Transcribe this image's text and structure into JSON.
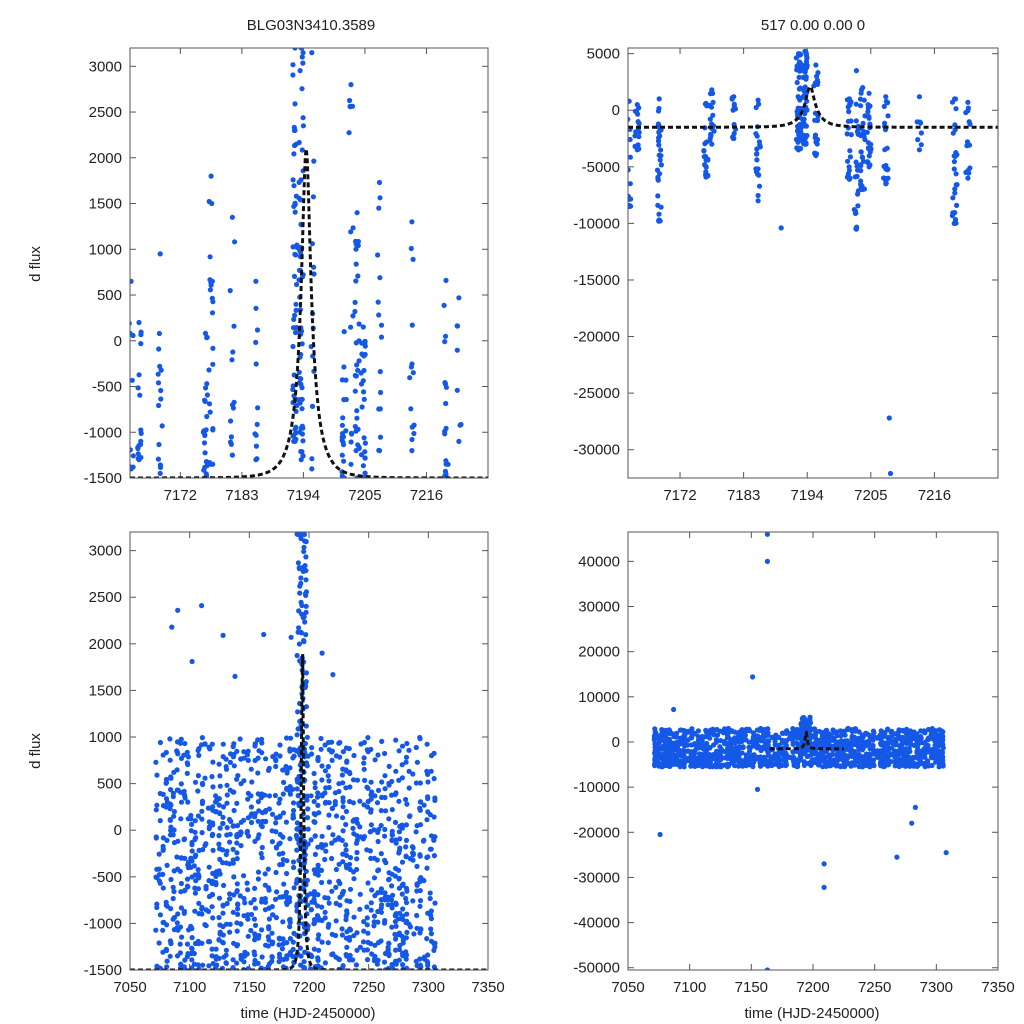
{
  "figure": {
    "left_title": "BLG03N3410.3589",
    "right_title": "517  0.00   0.00   0",
    "ylabel": "d flux",
    "xlabel": "time (HJD-2450000)",
    "point_color": "#1558e8",
    "model_color": "#111111"
  },
  "chart_data": [
    {
      "id": "top-left",
      "type": "scatter",
      "title": "BLG03N3410.3589",
      "ylabel": "d flux",
      "xlim": [
        7163,
        7227
      ],
      "ylim": [
        -1500,
        3200
      ],
      "xticks": [
        7172,
        7183,
        7194,
        7205,
        7216
      ],
      "yticks": [
        -1500,
        -1000,
        -500,
        0,
        500,
        1000,
        1500,
        2000,
        2500,
        3000
      ],
      "model": {
        "t0": 7194.5,
        "tE": 3.5,
        "base": -1500,
        "peak": 2100
      },
      "clusters": [
        {
          "x": 7163.2,
          "n": 8,
          "ymin": -1400,
          "ymax": 650
        },
        {
          "x": 7164.6,
          "n": 16,
          "ymin": -1300,
          "ymax": 200
        },
        {
          "x": 7168.4,
          "n": 14,
          "ymin": -1450,
          "ymax": 950
        },
        {
          "x": 7176.5,
          "n": 22,
          "ymin": -1500,
          "ymax": 80
        },
        {
          "x": 7177.5,
          "n": 20,
          "ymin": -1350,
          "ymax": 1800
        },
        {
          "x": 7181.3,
          "n": 12,
          "ymin": -1250,
          "ymax": 1350
        },
        {
          "x": 7185.5,
          "n": 10,
          "ymin": -1300,
          "ymax": 650
        },
        {
          "x": 7192.5,
          "n": 50,
          "ymin": -1100,
          "ymax": 3200
        },
        {
          "x": 7193.6,
          "n": 55,
          "ymin": -1300,
          "ymax": 3200
        },
        {
          "x": 7195.5,
          "n": 12,
          "ymin": -1400,
          "ymax": 3150
        },
        {
          "x": 7201.3,
          "n": 18,
          "ymin": -1500,
          "ymax": 100
        },
        {
          "x": 7202.5,
          "n": 12,
          "ymin": -1350,
          "ymax": 2800
        },
        {
          "x": 7203.6,
          "n": 28,
          "ymin": -1500,
          "ymax": 1400
        },
        {
          "x": 7204.7,
          "n": 22,
          "ymin": -1500,
          "ymax": 150
        },
        {
          "x": 7207.6,
          "n": 14,
          "ymin": -1200,
          "ymax": 1730
        },
        {
          "x": 7213.4,
          "n": 12,
          "ymin": -1200,
          "ymax": 1300
        },
        {
          "x": 7219.5,
          "n": 16,
          "ymin": -1480,
          "ymax": 660
        },
        {
          "x": 7221.8,
          "n": 6,
          "ymin": -1100,
          "ymax": 470
        }
      ]
    },
    {
      "id": "top-right",
      "type": "scatter",
      "title": "517  0.00   0.00   0",
      "xlim": [
        7163,
        7227
      ],
      "ylim": [
        -32500,
        5500
      ],
      "xticks": [
        7172,
        7183,
        7194,
        7205,
        7216
      ],
      "yticks": [
        -30000,
        -25000,
        -20000,
        -15000,
        -10000,
        -5000,
        0,
        5000
      ],
      "model": {
        "t0": 7194.5,
        "tE": 3.5,
        "base": -1500,
        "peak": 2100
      },
      "clusters": [
        {
          "x": 7163.2,
          "n": 12,
          "ymin": -8500,
          "ymax": 800
        },
        {
          "x": 7164.6,
          "n": 16,
          "ymin": -3500,
          "ymax": 500
        },
        {
          "x": 7168.4,
          "n": 30,
          "ymin": -9800,
          "ymax": 1000
        },
        {
          "x": 7176.5,
          "n": 20,
          "ymin": -5900,
          "ymax": 600
        },
        {
          "x": 7177.5,
          "n": 16,
          "ymin": -3000,
          "ymax": 1800
        },
        {
          "x": 7181.3,
          "n": 14,
          "ymin": -2500,
          "ymax": 1200
        },
        {
          "x": 7185.5,
          "n": 20,
          "ymin": -8000,
          "ymax": 900
        },
        {
          "x": 7192.5,
          "n": 55,
          "ymin": -3500,
          "ymax": 5000
        },
        {
          "x": 7193.6,
          "n": 55,
          "ymin": -3000,
          "ymax": 5200
        },
        {
          "x": 7195.5,
          "n": 20,
          "ymin": -4000,
          "ymax": 4000
        },
        {
          "x": 7201.3,
          "n": 20,
          "ymin": -6100,
          "ymax": 1000
        },
        {
          "x": 7202.5,
          "n": 20,
          "ymin": -10500,
          "ymax": 3500
        },
        {
          "x": 7203.6,
          "n": 30,
          "ymin": -7000,
          "ymax": 2000
        },
        {
          "x": 7204.7,
          "n": 22,
          "ymin": -5000,
          "ymax": 1500
        },
        {
          "x": 7207.6,
          "n": 20,
          "ymin": -6500,
          "ymax": 1200
        },
        {
          "x": 7213.4,
          "n": 6,
          "ymin": -3500,
          "ymax": 1200
        },
        {
          "x": 7219.5,
          "n": 26,
          "ymin": -10000,
          "ymax": 1000
        },
        {
          "x": 7221.8,
          "n": 12,
          "ymin": -6000,
          "ymax": 700
        }
      ],
      "extra_points": [
        [
          7189.5,
          -10400
        ],
        [
          7208.2,
          -27200
        ],
        [
          7208.4,
          -32100
        ]
      ]
    },
    {
      "id": "bottom-left",
      "type": "scatter",
      "ylabel": "d flux",
      "xlabel": "time (HJD-2450000)",
      "xlim": [
        7050,
        7350
      ],
      "ylim": [
        -1500,
        3200
      ],
      "xticks": [
        7050,
        7100,
        7150,
        7200,
        7250,
        7300,
        7350
      ],
      "yticks": [
        -1500,
        -1000,
        -500,
        0,
        500,
        1000,
        1500,
        2000,
        2500,
        3000
      ],
      "model": {
        "t0": 7194.5,
        "tE": 3.5,
        "base": -1500,
        "peak": 2100
      },
      "spread": {
        "xmin": 7072,
        "xmax": 7308,
        "n": 1300,
        "ymin": -1500,
        "ymax": 1000
      },
      "peak_cluster": {
        "x": 7194,
        "halfwidth": 4,
        "n": 120,
        "ymin": -1100,
        "ymax": 3200
      },
      "extra_points": [
        [
          7085,
          2180
        ],
        [
          7090,
          2360
        ],
        [
          7110,
          2410
        ],
        [
          7102,
          1810
        ],
        [
          7128,
          2090
        ],
        [
          7162,
          2100
        ],
        [
          7185,
          2070
        ],
        [
          7211,
          1900
        ],
        [
          7220,
          1670
        ],
        [
          7138,
          1650
        ]
      ]
    },
    {
      "id": "bottom-right",
      "type": "scatter",
      "xlabel": "time (HJD-2450000)",
      "xlim": [
        7050,
        7350
      ],
      "ylim": [
        -50500,
        46500
      ],
      "xticks": [
        7050,
        7100,
        7150,
        7200,
        7250,
        7300,
        7350
      ],
      "yticks": [
        -50000,
        -40000,
        -30000,
        -20000,
        -10000,
        0,
        10000,
        20000,
        30000,
        40000
      ],
      "model": {
        "t0": 7194.5,
        "tE": 3.5,
        "base": -1500,
        "peak": 2100,
        "xrange": [
          7165,
          7225
        ]
      },
      "spread": {
        "xmin": 7072,
        "xmax": 7308,
        "n": 1300,
        "ymin": -5500,
        "ymax": 3000
      },
      "peak_cluster": {
        "x": 7194,
        "halfwidth": 4,
        "n": 80,
        "ymin": -2000,
        "ymax": 5500
      },
      "extra_points": [
        [
          7163,
          46000
        ],
        [
          7163,
          40000
        ],
        [
          7151,
          14400
        ],
        [
          7076,
          -20500
        ],
        [
          7087,
          7200
        ],
        [
          7209,
          -27000
        ],
        [
          7209,
          -32200
        ],
        [
          7163,
          -50500
        ],
        [
          7268,
          -25500
        ],
        [
          7280,
          -18000
        ],
        [
          7308,
          -24500
        ],
        [
          7155,
          -10500
        ],
        [
          7283,
          -14500
        ]
      ]
    }
  ]
}
